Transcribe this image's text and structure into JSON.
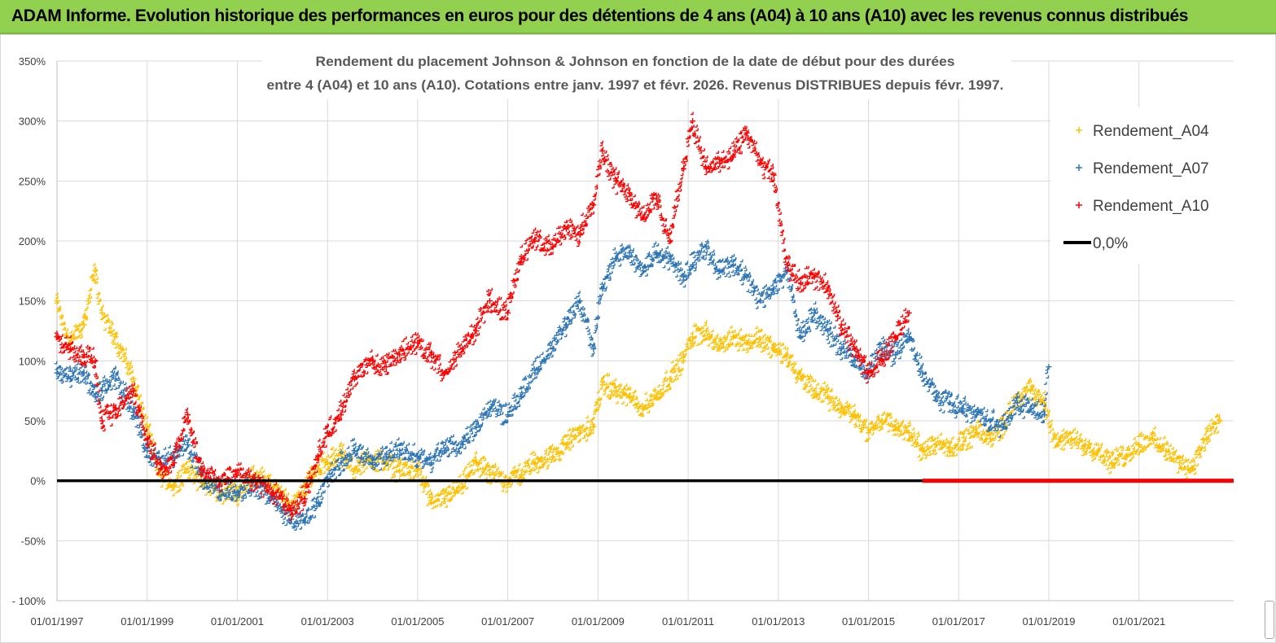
{
  "header": {
    "title": "ADAM Informe. Evolution historique des performances en euros pour des détentions de 4 ans (A04) à 10 ans (A10) avec les revenus connus distribués"
  },
  "chart_data": {
    "type": "scatter",
    "title_line1": "Rendement du placement Johnson & Johnson en fonction de la date de début pour des durées",
    "title_line2": "entre 4 (A04) et 10 ans (A10).  Cotations entre janv. 1997 et févr. 2026. Revenus DISTRIBUES depuis févr. 1997.",
    "xlabel": "",
    "ylabel": "",
    "xlim": [
      1997.0,
      2023.1
    ],
    "ylim": [
      -100,
      350
    ],
    "y_ticks": [
      350,
      300,
      250,
      200,
      150,
      100,
      50,
      0,
      -50,
      -100
    ],
    "y_tick_labels": [
      "350%",
      "300%",
      "250%",
      "200%",
      "150%",
      "100%",
      "50%",
      "0%",
      "-50%",
      "- 100%"
    ],
    "x_ticks": [
      1997,
      1999,
      2001,
      2003,
      2005,
      2007,
      2009,
      2011,
      2013,
      2015,
      2017,
      2019,
      2021
    ],
    "x_tick_labels": [
      "01/01/1997",
      "01/01/1999",
      "01/01/2001",
      "01/01/2003",
      "01/01/2005",
      "01/01/2007",
      "01/01/2009",
      "01/01/2011",
      "01/01/2013",
      "01/01/2015",
      "01/01/2017",
      "01/01/2019",
      "01/01/2021"
    ],
    "grid": true,
    "legend_position": "top-right",
    "legend": [
      {
        "label": "Rendement_A04",
        "color": "#ffc000",
        "marker": "plus"
      },
      {
        "label": "Rendement_A07",
        "color": "#2e75b6",
        "marker": "plus"
      },
      {
        "label": "Rendement_A10",
        "color": "#ff0000",
        "marker": "plus"
      },
      {
        "label": "0,0%",
        "color": "#000000",
        "marker": "line"
      }
    ],
    "reference_line": {
      "label": "0,0%",
      "y": 0,
      "x_range": [
        1997.0,
        2023.1
      ]
    },
    "series": [
      {
        "name": "Rendement_A04",
        "color": "#ffc000",
        "x": [
          1997.0,
          1997.3,
          1997.6,
          1997.85,
          1998.0,
          1998.3,
          1998.7,
          1999.0,
          1999.3,
          1999.6,
          1999.9,
          2000.2,
          2000.6,
          2001.0,
          2001.4,
          2001.8,
          2002.0,
          2002.2,
          2002.5,
          2002.8,
          2003.0,
          2003.3,
          2003.6,
          2004.0,
          2004.3,
          2004.6,
          2005.0,
          2005.3,
          2005.6,
          2006.0,
          2006.3,
          2006.6,
          2007.0,
          2007.3,
          2007.6,
          2008.0,
          2008.3,
          2008.6,
          2008.9,
          2009.1,
          2009.4,
          2009.7,
          2010.0,
          2010.3,
          2010.6,
          2010.9,
          2011.1,
          2011.4,
          2011.7,
          2012.0,
          2012.3,
          2012.6,
          2012.9,
          2013.2,
          2013.5,
          2013.8,
          2014.1,
          2014.4,
          2014.7,
          2015.0,
          2015.3,
          2015.6,
          2015.9,
          2016.2,
          2016.5,
          2016.8,
          2017.1,
          2017.4,
          2017.7,
          2018.0,
          2018.3,
          2018.6,
          2018.9,
          2019.2,
          2019.5,
          2019.8,
          2020.1,
          2020.4,
          2020.7,
          2021.0,
          2021.3,
          2021.6,
          2021.9,
          2022.2,
          2022.5,
          2022.8
        ],
        "y": [
          150,
          115,
          130,
          175,
          140,
          120,
          85,
          45,
          5,
          -5,
          10,
          0,
          -10,
          -12,
          5,
          -5,
          -15,
          -22,
          -5,
          10,
          15,
          22,
          10,
          18,
          15,
          8,
          10,
          -18,
          -15,
          -5,
          15,
          5,
          0,
          5,
          15,
          20,
          30,
          40,
          45,
          80,
          75,
          70,
          60,
          70,
          85,
          100,
          120,
          125,
          110,
          120,
          115,
          118,
          110,
          105,
          85,
          75,
          70,
          60,
          55,
          40,
          50,
          45,
          40,
          25,
          30,
          28,
          30,
          40,
          35,
          45,
          70,
          75,
          65,
          30,
          35,
          30,
          25,
          15,
          20,
          30,
          35,
          25,
          15,
          10,
          35,
          50
        ]
      },
      {
        "name": "Rendement_A07",
        "color": "#2e75b6",
        "x": [
          1997.0,
          1997.3,
          1997.6,
          1997.85,
          1998.0,
          1998.3,
          1998.7,
          1999.0,
          1999.3,
          1999.6,
          1999.9,
          2000.2,
          2000.6,
          2001.0,
          2001.4,
          2001.8,
          2002.0,
          2002.2,
          2002.5,
          2002.8,
          2003.0,
          2003.3,
          2003.6,
          2004.0,
          2004.3,
          2004.6,
          2005.0,
          2005.3,
          2005.6,
          2006.0,
          2006.3,
          2006.6,
          2007.0,
          2007.3,
          2007.6,
          2008.0,
          2008.3,
          2008.6,
          2008.9,
          2009.1,
          2009.4,
          2009.7,
          2010.0,
          2010.3,
          2010.6,
          2010.9,
          2011.1,
          2011.4,
          2011.7,
          2012.0,
          2012.3,
          2012.6,
          2012.9,
          2013.2,
          2013.5,
          2013.8,
          2014.1,
          2014.4,
          2014.7,
          2015.0,
          2015.3,
          2015.6,
          2015.9,
          2016.2,
          2016.5,
          2016.8,
          2017.1,
          2017.4,
          2017.7,
          2018.0,
          2018.3,
          2018.6,
          2018.9,
          2019.0
        ],
        "y": [
          90,
          85,
          90,
          70,
          75,
          85,
          60,
          25,
          15,
          20,
          30,
          5,
          -8,
          -10,
          -5,
          -15,
          -25,
          -32,
          -35,
          -18,
          0,
          15,
          25,
          15,
          20,
          25,
          20,
          15,
          25,
          30,
          45,
          60,
          55,
          70,
          90,
          110,
          130,
          150,
          110,
          160,
          185,
          190,
          175,
          190,
          185,
          170,
          180,
          195,
          175,
          180,
          170,
          150,
          160,
          175,
          120,
          140,
          125,
          110,
          100,
          90,
          110,
          105,
          120,
          90,
          70,
          65,
          60,
          55,
          50,
          45,
          65,
          60,
          55,
          95
        ]
      },
      {
        "name": "Rendement_A10",
        "color": "#ff0000",
        "x": [
          1997.0,
          1997.3,
          1997.6,
          1997.85,
          1998.0,
          1998.3,
          1998.7,
          1999.0,
          1999.3,
          1999.6,
          1999.9,
          2000.2,
          2000.6,
          2001.0,
          2001.4,
          2001.8,
          2002.0,
          2002.2,
          2002.5,
          2002.8,
          2003.0,
          2003.3,
          2003.6,
          2004.0,
          2004.3,
          2004.6,
          2005.0,
          2005.3,
          2005.6,
          2006.0,
          2006.3,
          2006.6,
          2007.0,
          2007.3,
          2007.6,
          2008.0,
          2008.3,
          2008.6,
          2008.9,
          2009.1,
          2009.4,
          2009.7,
          2010.0,
          2010.3,
          2010.6,
          2010.9,
          2011.1,
          2011.4,
          2011.7,
          2012.0,
          2012.3,
          2012.6,
          2012.9,
          2013.2,
          2013.5,
          2013.8,
          2014.1,
          2014.4,
          2014.7,
          2015.0,
          2015.3,
          2015.6,
          2015.9
        ],
        "y": [
          120,
          110,
          105,
          100,
          50,
          55,
          75,
          35,
          10,
          15,
          55,
          10,
          0,
          5,
          0,
          -10,
          -15,
          -25,
          -15,
          20,
          40,
          55,
          85,
          100,
          95,
          105,
          115,
          105,
          90,
          110,
          125,
          150,
          140,
          185,
          200,
          195,
          210,
          205,
          230,
          275,
          250,
          240,
          220,
          235,
          200,
          260,
          300,
          260,
          265,
          270,
          290,
          265,
          255,
          180,
          165,
          170,
          160,
          130,
          110,
          90,
          100,
          120,
          140
        ]
      }
    ],
    "tail_segment": {
      "series": "Rendement_A10",
      "x_range": [
        2016.2,
        2023.1
      ],
      "y": 0
    }
  }
}
